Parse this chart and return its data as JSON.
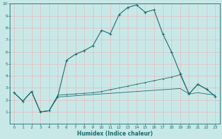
{
  "xlabel": "Humidex (Indice chaleur)",
  "bg_color": "#c8e8e8",
  "grid_color": "#e8b8b8",
  "line_color": "#1a6b6b",
  "xlim": [
    -0.5,
    23.5
  ],
  "ylim": [
    0,
    10
  ],
  "xticks": [
    0,
    1,
    2,
    3,
    4,
    5,
    6,
    7,
    8,
    9,
    10,
    11,
    12,
    13,
    14,
    15,
    16,
    17,
    18,
    19,
    20,
    21,
    22,
    23
  ],
  "yticks": [
    1,
    2,
    3,
    4,
    5,
    6,
    7,
    8,
    9,
    10
  ],
  "curve1_x": [
    0,
    1,
    2,
    3,
    4,
    5,
    6,
    7,
    8,
    9,
    10,
    11,
    12,
    13,
    14,
    15,
    16,
    17,
    18,
    19,
    20,
    21,
    22,
    23
  ],
  "curve1_y": [
    2.6,
    1.9,
    2.7,
    1.0,
    1.1,
    2.3,
    5.3,
    5.8,
    6.1,
    6.5,
    7.8,
    7.5,
    9.1,
    9.7,
    9.9,
    9.3,
    9.5,
    7.5,
    6.0,
    4.2,
    2.5,
    3.3,
    2.9,
    2.3
  ],
  "curve2_x": [
    0,
    1,
    2,
    3,
    4,
    5,
    6,
    7,
    8,
    9,
    10,
    11,
    12,
    13,
    14,
    15,
    16,
    17,
    18,
    19,
    20,
    21,
    22,
    23
  ],
  "curve2_y": [
    2.6,
    1.9,
    2.7,
    1.0,
    1.1,
    2.4,
    2.45,
    2.5,
    2.55,
    2.6,
    2.7,
    2.85,
    3.0,
    3.15,
    3.3,
    3.45,
    3.6,
    3.75,
    3.9,
    4.1,
    2.5,
    3.3,
    2.9,
    2.3
  ],
  "curve3_x": [
    0,
    1,
    2,
    3,
    4,
    5,
    6,
    7,
    8,
    9,
    10,
    11,
    12,
    13,
    14,
    15,
    16,
    17,
    18,
    19,
    20,
    21,
    22,
    23
  ],
  "curve3_y": [
    2.6,
    1.9,
    2.7,
    1.0,
    1.1,
    2.25,
    2.3,
    2.35,
    2.4,
    2.45,
    2.5,
    2.55,
    2.6,
    2.65,
    2.7,
    2.75,
    2.8,
    2.85,
    2.9,
    2.95,
    2.5,
    2.6,
    2.5,
    2.4
  ]
}
